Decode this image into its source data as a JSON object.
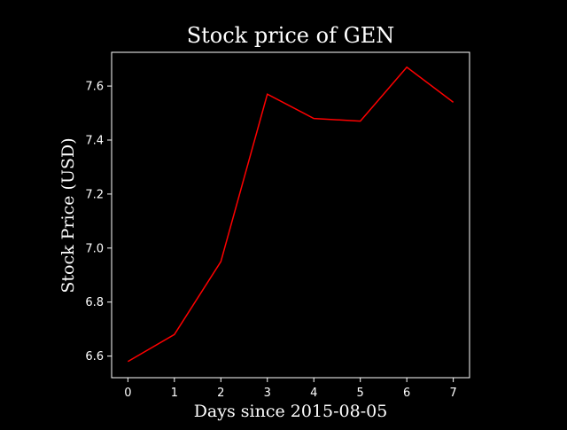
{
  "chart_data": {
    "type": "line",
    "title": "Stock price of GEN",
    "xlabel": "Days since 2015-08-05",
    "ylabel": "Stock Price (USD)",
    "x": [
      0,
      1,
      2,
      3,
      4,
      5,
      6,
      7
    ],
    "series": [
      {
        "values": [
          6.58,
          6.68,
          6.95,
          7.57,
          7.48,
          7.47,
          7.67,
          7.54
        ]
      }
    ],
    "xlim": [
      -0.35,
      7.35
    ],
    "ylim": [
      6.52,
      7.725
    ],
    "xticks": [
      0,
      1,
      2,
      3,
      4,
      5,
      6,
      7
    ],
    "yticks": [
      6.6,
      6.8,
      7.0,
      7.2,
      7.4,
      7.6
    ],
    "ytick_labels": [
      "6.6",
      "6.8",
      "7.0",
      "7.2",
      "7.4",
      "7.6"
    ],
    "grid": false,
    "colors": {
      "background": "#000000",
      "axes": "#ffffff",
      "text": "#ffffff",
      "line": "#ff0000"
    }
  }
}
